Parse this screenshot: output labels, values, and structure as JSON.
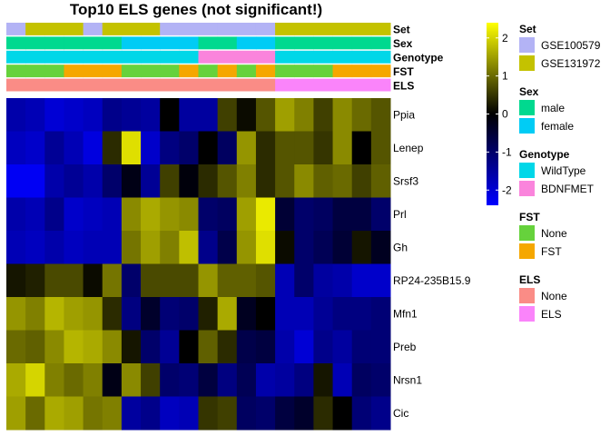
{
  "chart_data": {
    "type": "heatmap",
    "title": "Top10 ELS genes (not significant!)",
    "rows": [
      "Ppia",
      "Lenep",
      "Srsf3",
      "Prl",
      "Gh",
      "RP24-235B15.9",
      "Mfn1",
      "Preb",
      "Nrsn1",
      "Cic"
    ],
    "values": [
      [
        -1.6,
        -1.7,
        -2.0,
        -1.9,
        -1.8,
        -1.3,
        -1.4,
        -1.5,
        0.0,
        -1.5,
        -1.5,
        0.6,
        0.1,
        0.8,
        1.5,
        1.2,
        0.6,
        1.3,
        1.0,
        0.8
      ],
      [
        -1.8,
        -1.9,
        -1.4,
        -1.7,
        -2.1,
        0.4,
        2.1,
        -1.9,
        -1.2,
        -1.0,
        0.0,
        -0.9,
        1.4,
        0.4,
        0.8,
        0.8,
        0.5,
        1.3,
        0.0,
        0.8
      ],
      [
        -2.3,
        -2.3,
        -1.6,
        -1.4,
        -1.6,
        -1.0,
        -0.2,
        -1.4,
        0.6,
        -0.1,
        0.4,
        0.8,
        1.2,
        0.4,
        0.8,
        1.3,
        0.9,
        1.0,
        0.6,
        0.9
      ],
      [
        -1.6,
        -1.7,
        -1.3,
        -1.9,
        -1.8,
        -1.7,
        1.3,
        1.6,
        1.4,
        1.3,
        -1.0,
        -0.9,
        1.5,
        2.2,
        -0.5,
        -1.0,
        -0.9,
        -0.6,
        -0.6,
        -1.0
      ],
      [
        -1.7,
        -1.8,
        -1.6,
        -1.8,
        -1.7,
        -1.7,
        1.1,
        1.5,
        1.2,
        1.8,
        -1.3,
        -0.7,
        1.4,
        2.1,
        0.1,
        -1.0,
        -0.8,
        -0.5,
        0.2,
        -0.3
      ],
      [
        0.2,
        0.3,
        0.7,
        0.7,
        0.1,
        1.1,
        -1.0,
        0.7,
        0.7,
        0.7,
        1.4,
        0.9,
        0.9,
        0.8,
        -1.7,
        -1.0,
        -1.5,
        -1.6,
        -1.9,
        -1.9
      ],
      [
        1.4,
        1.2,
        1.7,
        1.5,
        1.4,
        0.4,
        -1.2,
        -0.4,
        -1.1,
        -1.0,
        0.3,
        1.6,
        -0.3,
        0.0,
        -1.7,
        -1.7,
        -1.4,
        -1.2,
        -1.2,
        -1.1
      ],
      [
        1.0,
        0.9,
        1.3,
        1.7,
        1.6,
        1.3,
        0.2,
        -1.0,
        -1.4,
        0.0,
        0.9,
        0.4,
        -0.7,
        -0.6,
        -1.6,
        -2.0,
        -1.3,
        -1.5,
        -1.1,
        -1.1
      ],
      [
        1.6,
        2.0,
        1.2,
        1.0,
        1.2,
        -0.2,
        1.3,
        0.6,
        -1.0,
        -1.1,
        -0.6,
        -1.2,
        -0.8,
        -1.6,
        -1.5,
        -1.2,
        0.2,
        -1.7,
        -0.9,
        -1.0
      ],
      [
        1.5,
        1.0,
        1.6,
        1.5,
        1.1,
        1.2,
        -1.5,
        -1.3,
        -1.8,
        -1.7,
        0.5,
        0.6,
        -0.9,
        -1.0,
        -0.6,
        -0.4,
        0.4,
        0.0,
        -1.1,
        -1.3
      ]
    ],
    "color_scale": {
      "min": -2.4,
      "max": 2.4,
      "stops": [
        {
          "value": -2.4,
          "color": "#0000ff"
        },
        {
          "value": 0.0,
          "color": "#000000"
        },
        {
          "value": 2.4,
          "color": "#ffff00"
        }
      ],
      "ticks": [
        2,
        1,
        0,
        -1,
        -2
      ]
    },
    "annotations": [
      {
        "name": "Set",
        "values": [
          "GSE100579",
          "GSE131972",
          "GSE131972",
          "GSE131972",
          "GSE100579",
          "GSE131972",
          "GSE131972",
          "GSE131972",
          "GSE100579",
          "GSE100579",
          "GSE100579",
          "GSE100579",
          "GSE100579",
          "GSE100579",
          "GSE131972",
          "GSE131972",
          "GSE131972",
          "GSE131972",
          "GSE131972",
          "GSE131972"
        ]
      },
      {
        "name": "Sex",
        "values": [
          "male",
          "male",
          "male",
          "male",
          "male",
          "male",
          "female",
          "female",
          "female",
          "female",
          "male",
          "male",
          "female",
          "female",
          "male",
          "male",
          "male",
          "male",
          "male",
          "male"
        ]
      },
      {
        "name": "Genotype",
        "values": [
          "WildType",
          "WildType",
          "WildType",
          "WildType",
          "WildType",
          "WildType",
          "WildType",
          "WildType",
          "WildType",
          "WildType",
          "BDNFMET",
          "BDNFMET",
          "BDNFMET",
          "BDNFMET",
          "WildType",
          "WildType",
          "WildType",
          "WildType",
          "WildType",
          "WildType"
        ]
      },
      {
        "name": "FST",
        "values": [
          "None",
          "None",
          "None",
          "FST",
          "FST",
          "FST",
          "None",
          "None",
          "None",
          "FST",
          "None",
          "FST",
          "None",
          "FST",
          "None",
          "None",
          "None",
          "FST",
          "FST",
          "FST"
        ]
      },
      {
        "name": "ELS",
        "values": [
          "None",
          "None",
          "None",
          "None",
          "None",
          "None",
          "None",
          "None",
          "None",
          "None",
          "None",
          "None",
          "None",
          "None",
          "ELS",
          "ELS",
          "ELS",
          "ELS",
          "ELS",
          "ELS"
        ]
      }
    ],
    "legend": [
      {
        "title": "Set",
        "items": [
          {
            "label": "GSE100579",
            "color": "#b3b3f5"
          },
          {
            "label": "GSE131972",
            "color": "#c4c200"
          }
        ]
      },
      {
        "title": "Sex",
        "items": [
          {
            "label": "male",
            "color": "#00d98f"
          },
          {
            "label": "female",
            "color": "#00ccf5"
          }
        ]
      },
      {
        "title": "Genotype",
        "items": [
          {
            "label": "WildType",
            "color": "#00d7e8"
          },
          {
            "label": "BDNFMET",
            "color": "#fa84dc"
          }
        ]
      },
      {
        "title": "FST",
        "items": [
          {
            "label": "None",
            "color": "#66d23c"
          },
          {
            "label": "FST",
            "color": "#f5a700"
          }
        ]
      },
      {
        "title": "ELS",
        "items": [
          {
            "label": "None",
            "color": "#fa8c86"
          },
          {
            "label": "ELS",
            "color": "#fa84fa"
          }
        ]
      }
    ]
  }
}
